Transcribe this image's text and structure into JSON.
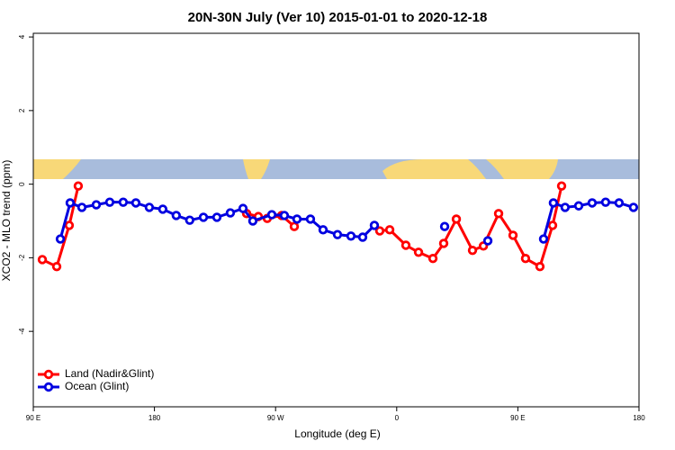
{
  "chart_data": {
    "type": "line",
    "title": "20N-30N July (Ver 10)   2015-01-01 to 2020-12-18",
    "x_label": "Longitude (deg E)",
    "y_label": "XCO2 - MLO trend (ppm)",
    "xlim": [
      90,
      540
    ],
    "ylim": [
      -6.05,
      4.1
    ],
    "xticks": [
      {
        "value": 90,
        "label": "90 E"
      },
      180,
      {
        "value": 270,
        "label": "90 W"
      },
      {
        "value": 360,
        "label": "0"
      },
      {
        "value": 450,
        "label": "90 E"
      },
      {
        "value": 540,
        "label": "180"
      }
    ],
    "yticks": [
      4,
      2,
      0,
      -2,
      -4
    ],
    "legend": "bottomleft",
    "series": [
      {
        "name": "Land (Nadir&Glint)",
        "color": "#ff0000",
        "x": [
          96.7,
          107.4,
          116.7,
          123.4,
          null,
          248.5,
          257.2,
          263.8,
          274.5,
          283.9,
          null,
          347.4,
          354.8,
          366.8,
          376.2,
          386.9,
          394.9,
          404.3,
          416.3,
          424.4,
          435.7,
          446.4,
          455.7,
          466.4,
          475.8,
          482.5
        ],
        "values": [
          -2.05,
          -2.24,
          -1.12,
          -0.05,
          null,
          -0.8,
          -0.88,
          -0.93,
          -0.85,
          -1.15,
          null,
          -1.27,
          -1.24,
          -1.66,
          -1.85,
          -2.02,
          -1.61,
          -0.95,
          -1.8,
          -1.68,
          -0.8,
          -1.39,
          -2.02,
          -2.24,
          -1.12,
          -0.05
        ]
      },
      {
        "name": "Ocean (Glint)",
        "color": "#0000e0",
        "x": [
          110.1,
          117.4,
          126.1,
          136.8,
          146.8,
          156.8,
          166.2,
          176.2,
          186.2,
          196.2,
          206.2,
          216.4,
          226.4,
          236.4,
          245.8,
          253.1,
          267.2,
          276.5,
          285.9,
          295.9,
          305.3,
          316.0,
          326.0,
          334.7,
          343.4,
          null,
          395.6,
          null,
          427.7,
          null,
          469.1,
          476.4,
          485.1,
          495.2,
          505.2,
          515.2,
          525.2,
          535.9
        ],
        "values": [
          -1.49,
          -0.51,
          -0.63,
          -0.56,
          -0.49,
          -0.49,
          -0.51,
          -0.63,
          -0.68,
          -0.85,
          -0.98,
          -0.9,
          -0.9,
          -0.78,
          -0.66,
          -1.0,
          -0.83,
          -0.85,
          -0.95,
          -0.95,
          -1.24,
          -1.37,
          -1.41,
          -1.44,
          -1.12,
          null,
          -1.15,
          null,
          -1.54,
          null,
          -1.49,
          -0.51,
          -0.63,
          -0.59,
          -0.51,
          -0.49,
          -0.51,
          -0.63
        ]
      }
    ]
  }
}
